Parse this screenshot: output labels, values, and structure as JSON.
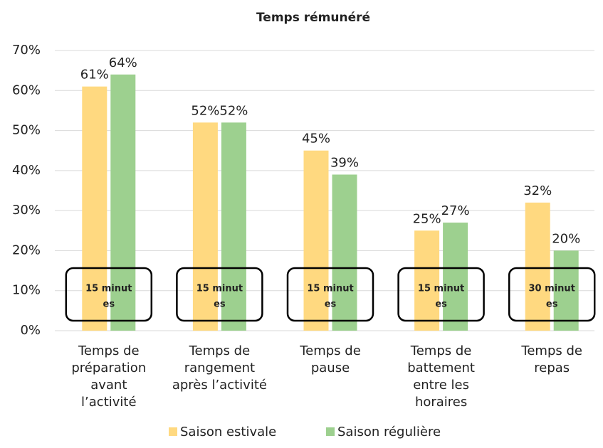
{
  "chart_data": {
    "type": "bar",
    "title": "Temps rémunéré",
    "categories": [
      "Temps de\npréparation\navant\nl’activité",
      "Temps de\nrangement\naprès l’activité",
      "Temps de\npause",
      "Temps de\nbattement\nentre les\nhoraires",
      "Temps de\nrepas"
    ],
    "series": [
      {
        "name": "Saison estivale",
        "color": "#ffd980",
        "values": [
          61,
          52,
          45,
          25,
          32
        ],
        "value_labels": [
          "61%",
          "52%",
          "45%",
          "25%",
          "32%"
        ]
      },
      {
        "name": "Saison régulière",
        "color": "#9dd08f",
        "values": [
          64,
          52,
          39,
          27,
          20
        ],
        "value_labels": [
          "64%",
          "52%",
          "39%",
          "27%",
          "20%"
        ]
      }
    ],
    "ylim": [
      0,
      70
    ],
    "yticks": [
      {
        "value": 0,
        "label": "0%"
      },
      {
        "value": 10,
        "label": "10%"
      },
      {
        "value": 20,
        "label": "20%"
      },
      {
        "value": 30,
        "label": "30%"
      },
      {
        "value": 40,
        "label": "40%"
      },
      {
        "value": 50,
        "label": "50%"
      },
      {
        "value": 60,
        "label": "60%"
      },
      {
        "value": 70,
        "label": "70%"
      }
    ],
    "grid": true,
    "legend": "bottom",
    "annotations": [
      {
        "lines": [
          "15 minut",
          "es"
        ]
      },
      {
        "lines": [
          "15 minut",
          "es"
        ]
      },
      {
        "lines": [
          "15 minut",
          "es"
        ]
      },
      {
        "lines": [
          "15 minut",
          "es"
        ]
      },
      {
        "lines": [
          "30 minut",
          "es"
        ]
      }
    ]
  }
}
